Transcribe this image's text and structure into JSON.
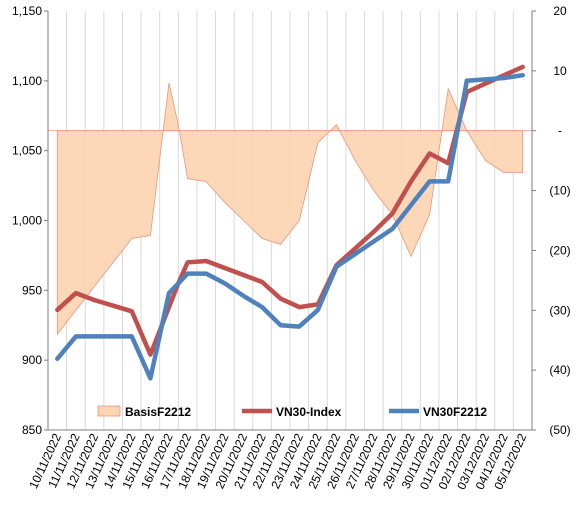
{
  "chart_data": {
    "type": "line",
    "title": "",
    "categories": [
      "10/11/2022",
      "11/11/2022",
      "12/11/2022",
      "13/11/2022",
      "14/11/2022",
      "15/11/2022",
      "16/11/2022",
      "17/11/2022",
      "18/11/2022",
      "19/11/2022",
      "20/11/2022",
      "21/11/2022",
      "22/11/2022",
      "23/11/2022",
      "24/11/2022",
      "25/11/2022",
      "26/11/2022",
      "27/11/2022",
      "28/11/2022",
      "29/11/2022",
      "30/11/2022",
      "01/12/2022",
      "02/12/2022",
      "03/12/2022",
      "04/12/2022",
      "05/12/2022"
    ],
    "y_left": {
      "min": 850,
      "max": 1150,
      "step": 50,
      "ticks": [
        "850",
        "900",
        "950",
        "1,000",
        "1,050",
        "1,100",
        "1,150"
      ]
    },
    "y_right": {
      "min": -50,
      "max": 20,
      "step": 10,
      "ticks": [
        "(50)",
        "(40)",
        "(30)",
        "(20)",
        "(10)",
        "-",
        "10",
        "20"
      ]
    },
    "x_data": [
      0,
      1,
      3.6,
      4,
      5,
      6,
      6.5,
      7,
      8,
      9,
      10,
      11,
      12,
      13,
      14,
      15,
      16,
      17,
      18,
      19,
      20,
      21,
      22,
      23,
      24,
      25,
      26,
      27,
      28,
      29,
      30,
      31,
      32,
      33,
      34,
      35,
      36,
      37,
      38,
      39,
      40,
      41,
      42,
      43,
      44,
      45,
      46,
      47,
      48,
      49,
      50,
      51,
      52,
      53,
      54,
      55
    ],
    "series": [
      {
        "name": "BasisF2212",
        "kind": "area",
        "axis": "right",
        "color": "#fcd5b4",
        "stroke": "#e9967a",
        "x": [
          0,
          1,
          2,
          3,
          4,
          5,
          6,
          6.5,
          7,
          8,
          9,
          10,
          11,
          12,
          13,
          14,
          15,
          16,
          17,
          18,
          19,
          20,
          21,
          22,
          23,
          24,
          25
        ],
        "values": [
          -34,
          -30,
          -26,
          -22,
          -18,
          -17.5,
          8,
          1,
          -8,
          -8.5,
          -12,
          -15,
          -18,
          -19,
          -15,
          -2,
          1,
          -5,
          -10,
          -14,
          -21,
          -14,
          7,
          0,
          -5,
          -7,
          -7
        ]
      },
      {
        "name": "VN30-Index",
        "kind": "line",
        "axis": "left",
        "color": "#c0504d",
        "x": [
          0,
          1,
          2,
          3,
          4,
          5,
          6,
          6.5,
          7,
          8,
          9,
          10,
          11,
          12,
          13,
          14,
          15,
          16,
          17,
          18,
          19,
          20,
          21,
          22,
          23,
          24,
          25
        ],
        "values": [
          936,
          948,
          943,
          939,
          935,
          904,
          938,
          955,
          970,
          971,
          966,
          961,
          956,
          944,
          938,
          940,
          968,
          980,
          992,
          1005,
          1028,
          1048,
          1041,
          1092,
          1098,
          1104,
          1110
        ]
      },
      {
        "name": "VN30F2212",
        "kind": "line",
        "axis": "left",
        "color": "#4f81bd",
        "x": [
          0,
          1,
          2,
          3,
          4,
          5,
          6,
          6.5,
          7,
          8,
          9,
          10,
          11,
          12,
          13,
          14,
          15,
          16,
          17,
          18,
          19,
          20,
          21,
          22,
          23,
          24,
          25
        ],
        "values": [
          901,
          917,
          917,
          917,
          917,
          887,
          948,
          955,
          962,
          962,
          955,
          946,
          938,
          925,
          924,
          936,
          967,
          976,
          985,
          994,
          1011,
          1028,
          1028,
          1100,
          1101,
          1102,
          1104
        ]
      }
    ],
    "legend_position": "bottom-inside",
    "grid": "vertical"
  }
}
